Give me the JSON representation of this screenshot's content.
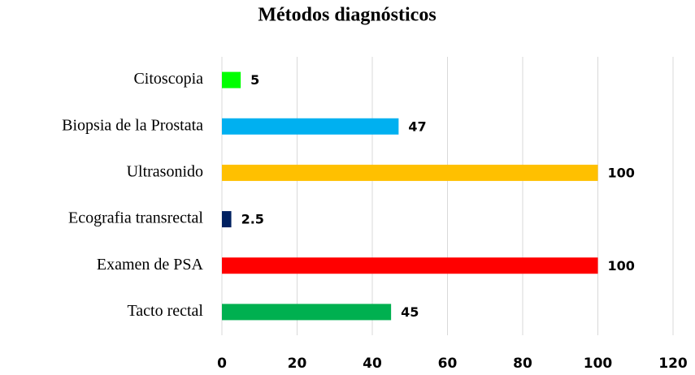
{
  "chart_data": {
    "type": "bar",
    "orientation": "horizontal",
    "title": "Métodos diagnósticos",
    "categories": [
      "Citoscopia",
      "Biopsia de la Prostata",
      "Ultrasonido",
      "Ecografia transrectal",
      "Examen de PSA",
      "Tacto rectal"
    ],
    "values": [
      5,
      47,
      100,
      2.5,
      100,
      45
    ],
    "colors": [
      "#00ff00",
      "#00b0f0",
      "#ffc000",
      "#002060",
      "#ff0000",
      "#00b050"
    ],
    "xlim": [
      0,
      120
    ],
    "xticks": [
      0,
      20,
      40,
      60,
      80,
      100,
      120
    ],
    "grid": true
  }
}
